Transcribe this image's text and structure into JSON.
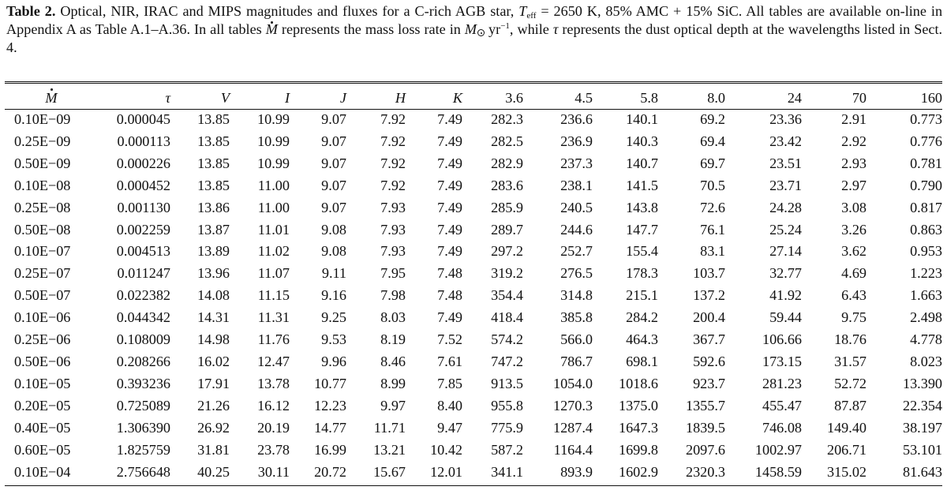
{
  "caption": {
    "label": "Table 2.",
    "text_a": "Optical, NIR, IRAC and MIPS magnitudes and fluxes for a C-rich AGB star,",
    "teff_symbol": "T",
    "teff_sub": "eff",
    "text_b": "= 2650 K, 85% AMC + 15% SiC. All tables are available on-line in Appendix A as Table A.1–A.36. In all tables",
    "mdot_symbol": "M",
    "text_c": "represents the mass loss rate in",
    "msun_symbol": "M",
    "msun_unit": "yr",
    "msun_exp": "−1",
    "text_d": ", while",
    "tau_symbol": "τ",
    "text_e": "represents the dust optical depth at the wavelengths listed in Sect. 4."
  },
  "table": {
    "headers": [
      "M",
      "τ",
      "V",
      "I",
      "J",
      "H",
      "K",
      "3.6",
      "4.5",
      "5.8",
      "8.0",
      "24",
      "70",
      "160"
    ],
    "rows": [
      [
        "0.10E−09",
        "0.000045",
        "13.85",
        "10.99",
        "9.07",
        "7.92",
        "7.49",
        "282.3",
        "236.6",
        "140.1",
        "69.2",
        "23.36",
        "2.91",
        "0.773"
      ],
      [
        "0.25E−09",
        "0.000113",
        "13.85",
        "10.99",
        "9.07",
        "7.92",
        "7.49",
        "282.5",
        "236.9",
        "140.3",
        "69.4",
        "23.42",
        "2.92",
        "0.776"
      ],
      [
        "0.50E−09",
        "0.000226",
        "13.85",
        "10.99",
        "9.07",
        "7.92",
        "7.49",
        "282.9",
        "237.3",
        "140.7",
        "69.7",
        "23.51",
        "2.93",
        "0.781"
      ],
      [
        "0.10E−08",
        "0.000452",
        "13.85",
        "11.00",
        "9.07",
        "7.92",
        "7.49",
        "283.6",
        "238.1",
        "141.5",
        "70.5",
        "23.71",
        "2.97",
        "0.790"
      ],
      [
        "0.25E−08",
        "0.001130",
        "13.86",
        "11.00",
        "9.07",
        "7.93",
        "7.49",
        "285.9",
        "240.5",
        "143.8",
        "72.6",
        "24.28",
        "3.08",
        "0.817"
      ],
      [
        "0.50E−08",
        "0.002259",
        "13.87",
        "11.01",
        "9.08",
        "7.93",
        "7.49",
        "289.7",
        "244.6",
        "147.7",
        "76.1",
        "25.24",
        "3.26",
        "0.863"
      ],
      [
        "0.10E−07",
        "0.004513",
        "13.89",
        "11.02",
        "9.08",
        "7.93",
        "7.49",
        "297.2",
        "252.7",
        "155.4",
        "83.1",
        "27.14",
        "3.62",
        "0.953"
      ],
      [
        "0.25E−07",
        "0.011247",
        "13.96",
        "11.07",
        "9.11",
        "7.95",
        "7.48",
        "319.2",
        "276.5",
        "178.3",
        "103.7",
        "32.77",
        "4.69",
        "1.223"
      ],
      [
        "0.50E−07",
        "0.022382",
        "14.08",
        "11.15",
        "9.16",
        "7.98",
        "7.48",
        "354.4",
        "314.8",
        "215.1",
        "137.2",
        "41.92",
        "6.43",
        "1.663"
      ],
      [
        "0.10E−06",
        "0.044342",
        "14.31",
        "11.31",
        "9.25",
        "8.03",
        "7.49",
        "418.4",
        "385.8",
        "284.2",
        "200.4",
        "59.44",
        "9.75",
        "2.498"
      ],
      [
        "0.25E−06",
        "0.108009",
        "14.98",
        "11.76",
        "9.53",
        "8.19",
        "7.52",
        "574.2",
        "566.0",
        "464.3",
        "367.7",
        "106.66",
        "18.76",
        "4.778"
      ],
      [
        "0.50E−06",
        "0.208266",
        "16.02",
        "12.47",
        "9.96",
        "8.46",
        "7.61",
        "747.2",
        "786.7",
        "698.1",
        "592.6",
        "173.15",
        "31.57",
        "8.023"
      ],
      [
        "0.10E−05",
        "0.393236",
        "17.91",
        "13.78",
        "10.77",
        "8.99",
        "7.85",
        "913.5",
        "1054.0",
        "1018.6",
        "923.7",
        "281.23",
        "52.72",
        "13.390"
      ],
      [
        "0.20E−05",
        "0.725089",
        "21.26",
        "16.12",
        "12.23",
        "9.97",
        "8.40",
        "955.8",
        "1270.3",
        "1375.0",
        "1355.7",
        "455.47",
        "87.87",
        "22.354"
      ],
      [
        "0.40E−05",
        "1.306390",
        "26.92",
        "20.19",
        "14.77",
        "11.71",
        "9.47",
        "775.9",
        "1287.4",
        "1647.3",
        "1839.5",
        "746.08",
        "149.40",
        "38.197"
      ],
      [
        "0.60E−05",
        "1.825759",
        "31.81",
        "23.78",
        "16.99",
        "13.21",
        "10.42",
        "587.2",
        "1164.4",
        "1699.8",
        "2097.6",
        "1002.97",
        "206.71",
        "53.101"
      ],
      [
        "0.10E−04",
        "2.756648",
        "40.25",
        "30.11",
        "20.72",
        "15.67",
        "12.01",
        "341.1",
        "893.9",
        "1602.9",
        "2320.3",
        "1458.59",
        "315.02",
        "81.643"
      ]
    ]
  }
}
